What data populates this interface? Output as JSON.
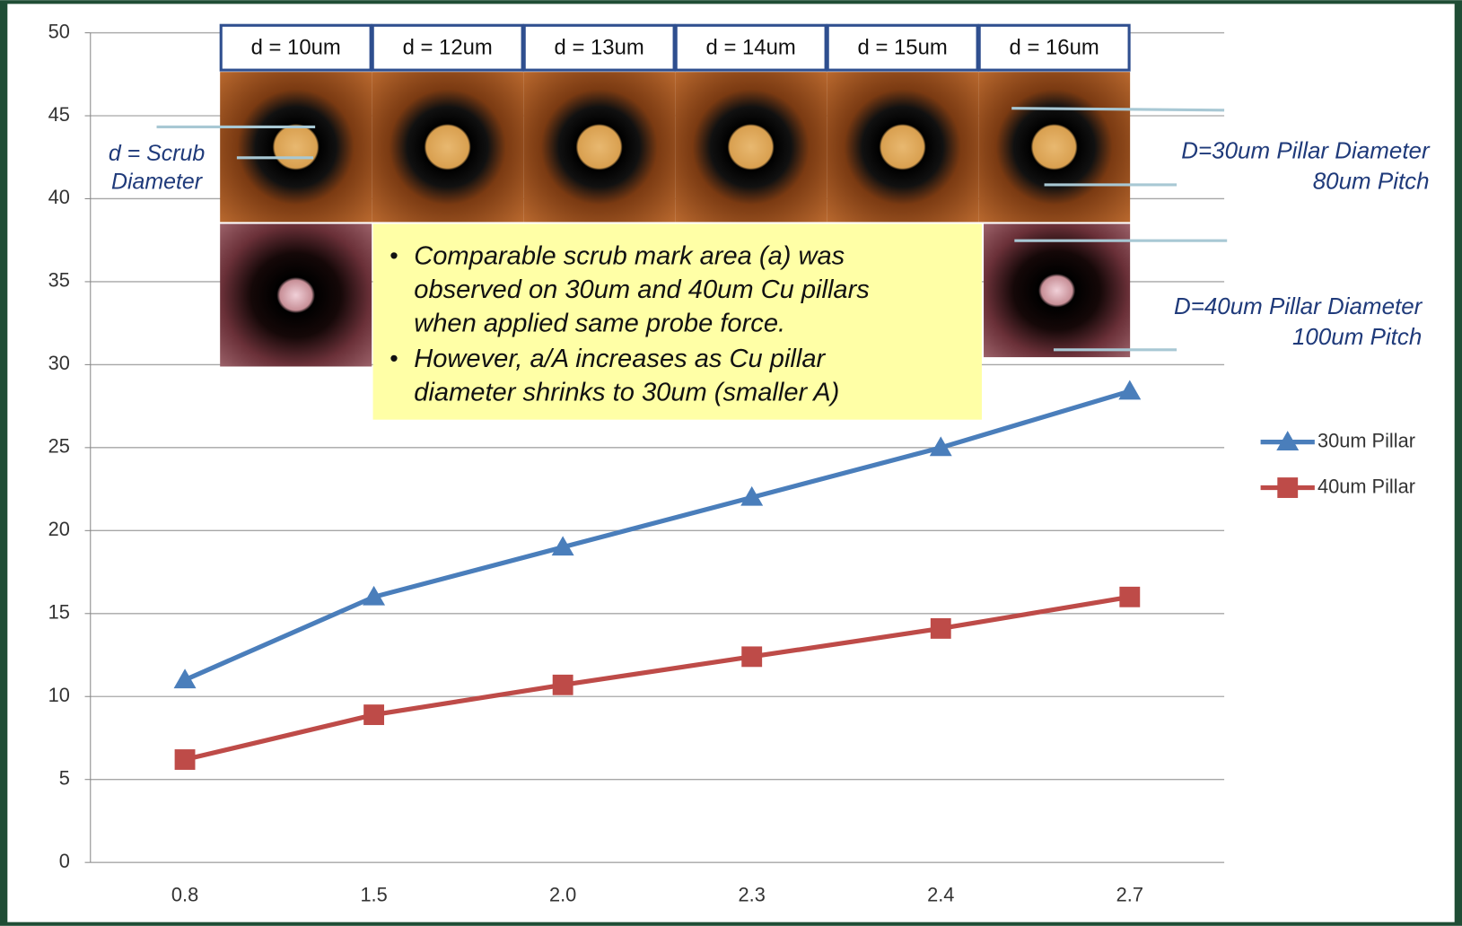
{
  "chart_data": {
    "type": "line",
    "categories": [
      "0.8",
      "1.5",
      "2.0",
      "2.3",
      "2.4",
      "2.7"
    ],
    "series": [
      {
        "name": "30um Pillar",
        "color": "#4a7ebb",
        "marker": "triangle",
        "values": [
          11,
          16,
          19,
          22,
          25,
          28.4
        ]
      },
      {
        "name": "40um Pillar",
        "color": "#be4b48",
        "marker": "square",
        "values": [
          6.2,
          8.9,
          10.7,
          12.4,
          14.1,
          16
        ]
      }
    ],
    "ylim": [
      0,
      50
    ],
    "yticks": [
      0,
      5,
      10,
      15,
      20,
      25,
      30,
      35,
      40,
      45,
      50
    ],
    "grid": true,
    "legend": "right",
    "scrub_labels": [
      "d = 10um",
      "d = 12um",
      "d = 13um",
      "d = 14um",
      "d = 15um",
      "d = 16um"
    ],
    "left_label": [
      "d = Scrub",
      "Diameter"
    ],
    "pillar30_label": [
      "D=30um Pillar Diameter",
      "80um Pitch"
    ],
    "pillar40_label": [
      "D=40um Pillar Diameter",
      "100um Pitch"
    ],
    "note_bullets": [
      [
        "Comparable scrub mark area (a) was",
        "observed on 30um and 40um Cu pillars",
        "when applied same probe force."
      ],
      [
        "However, a/A increases as Cu pillar",
        "diameter shrinks to 30um (smaller A)"
      ]
    ]
  }
}
